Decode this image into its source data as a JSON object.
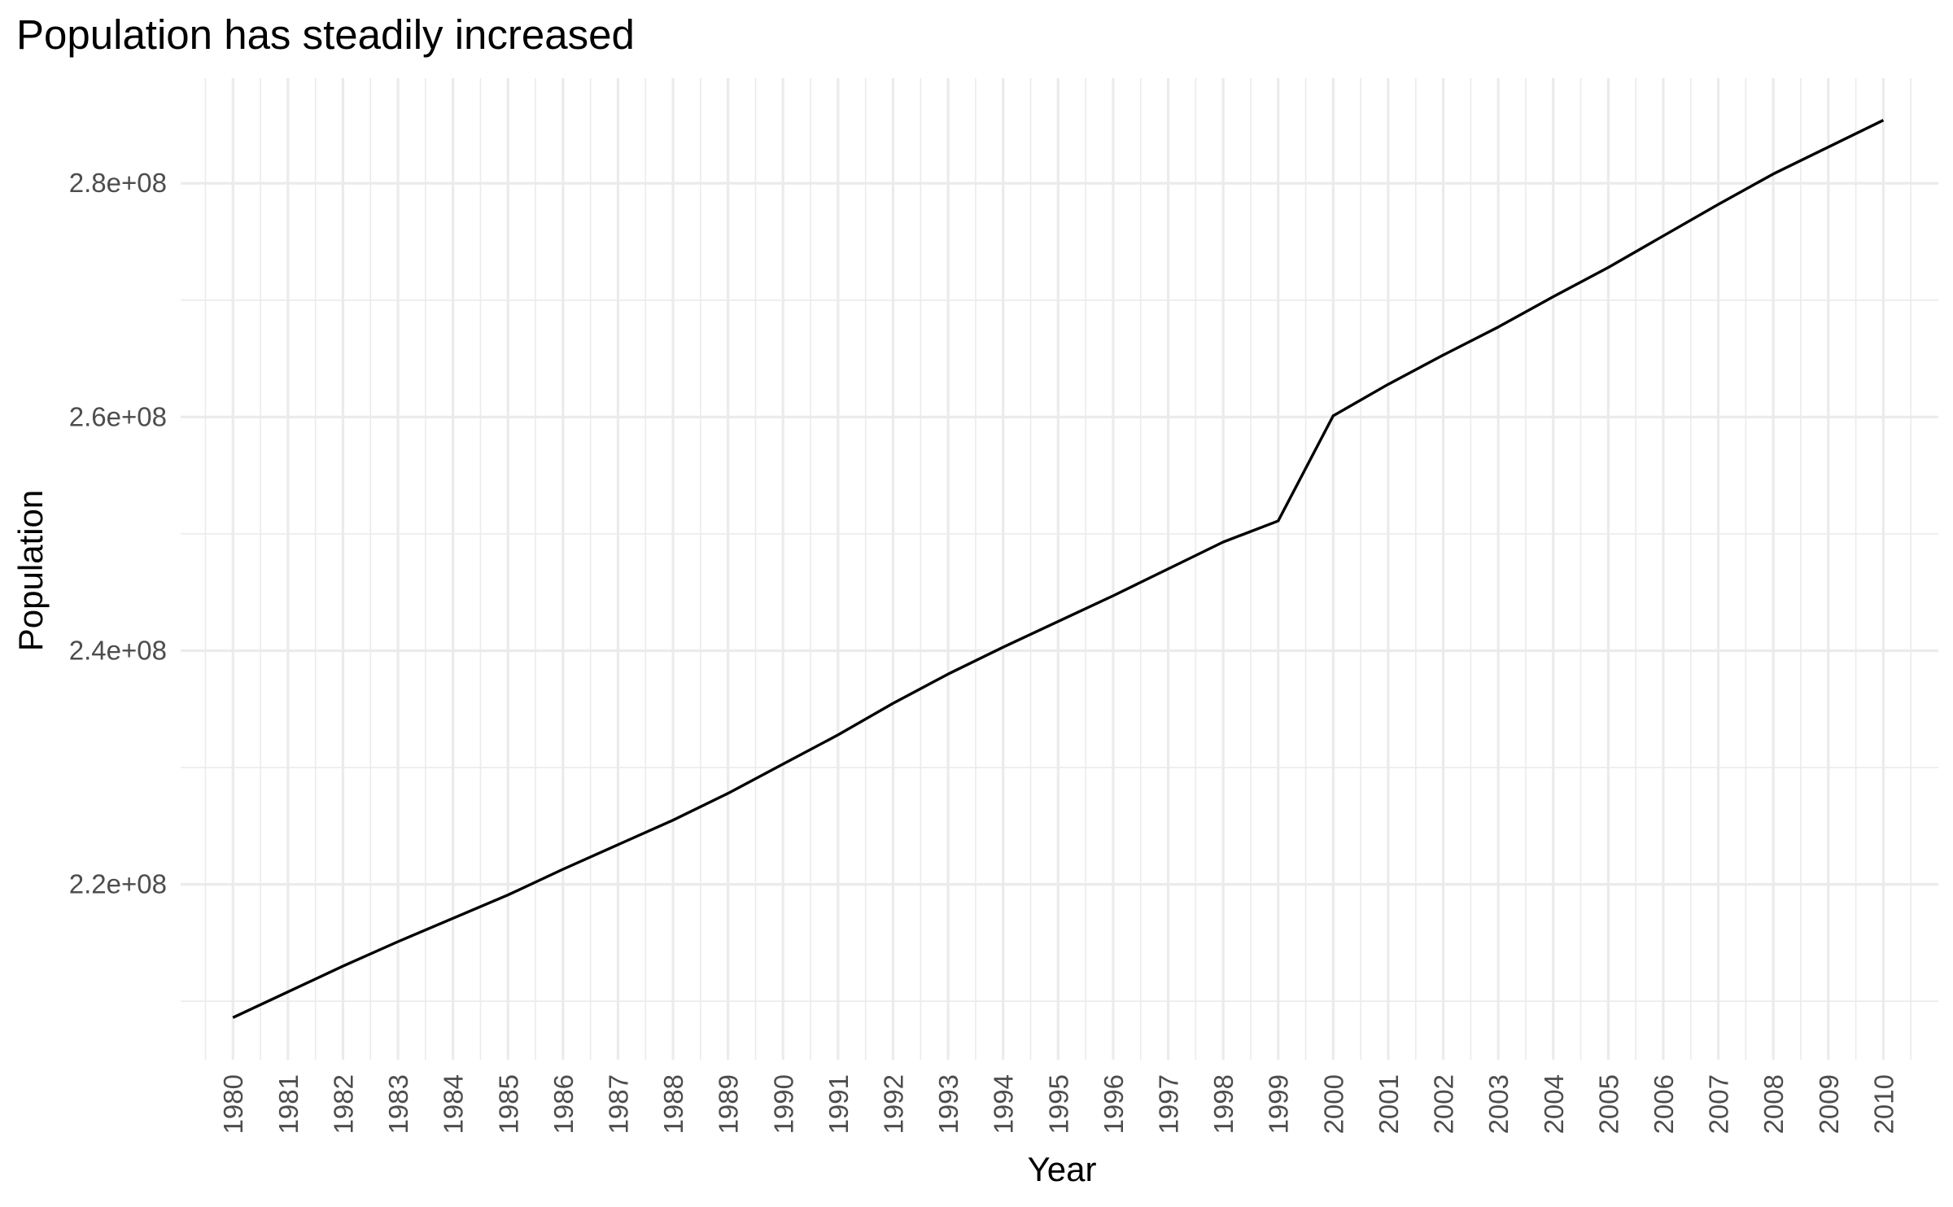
{
  "chart_data": {
    "type": "line",
    "title": "Population has steadily increased",
    "xlabel": "Year",
    "ylabel": "Population",
    "xlim": [
      1979.05,
      2011.0
    ],
    "ylim": [
      205000000,
      289000000
    ],
    "x_ticks": [
      "1980",
      "1981",
      "1982",
      "1983",
      "1984",
      "1985",
      "1986",
      "1987",
      "1988",
      "1989",
      "1990",
      "1991",
      "1992",
      "1993",
      "1994",
      "1995",
      "1996",
      "1997",
      "1998",
      "1999",
      "2000",
      "2001",
      "2002",
      "2003",
      "2004",
      "2005",
      "2006",
      "2007",
      "2008",
      "2009",
      "2010"
    ],
    "y_ticks": [
      {
        "value": 220000000,
        "label": "2.2e+08"
      },
      {
        "value": 240000000,
        "label": "2.4e+08"
      },
      {
        "value": 260000000,
        "label": "2.6e+08"
      },
      {
        "value": 280000000,
        "label": "2.8e+08"
      }
    ],
    "y_minor_ticks": [
      210000000,
      230000000,
      250000000,
      270000000
    ],
    "grid": true,
    "legend": "none",
    "line_color": "#000000",
    "grid_color": "#ebebeb",
    "series": [
      {
        "x": [
          1980,
          1981,
          1982,
          1983,
          1984,
          1985,
          1986,
          1987,
          1988,
          1989,
          1990,
          1991,
          1992,
          1993,
          1994,
          1995,
          1996,
          1997,
          1998,
          1999,
          2000,
          2001,
          2002,
          2003,
          2004,
          2005,
          2006,
          2007,
          2008,
          2009,
          2010
        ],
        "values": [
          208600000,
          210800000,
          213000000,
          215100000,
          217100000,
          219100000,
          221300000,
          223400000,
          225500000,
          227800000,
          230300000,
          232800000,
          235500000,
          238000000,
          240300000,
          242500000,
          244700000,
          247000000,
          249300000,
          251100000,
          260100000,
          262800000,
          265300000,
          267700000,
          270300000,
          272800000,
          275500000,
          278200000,
          280800000,
          283100000,
          285400000
        ]
      }
    ]
  }
}
